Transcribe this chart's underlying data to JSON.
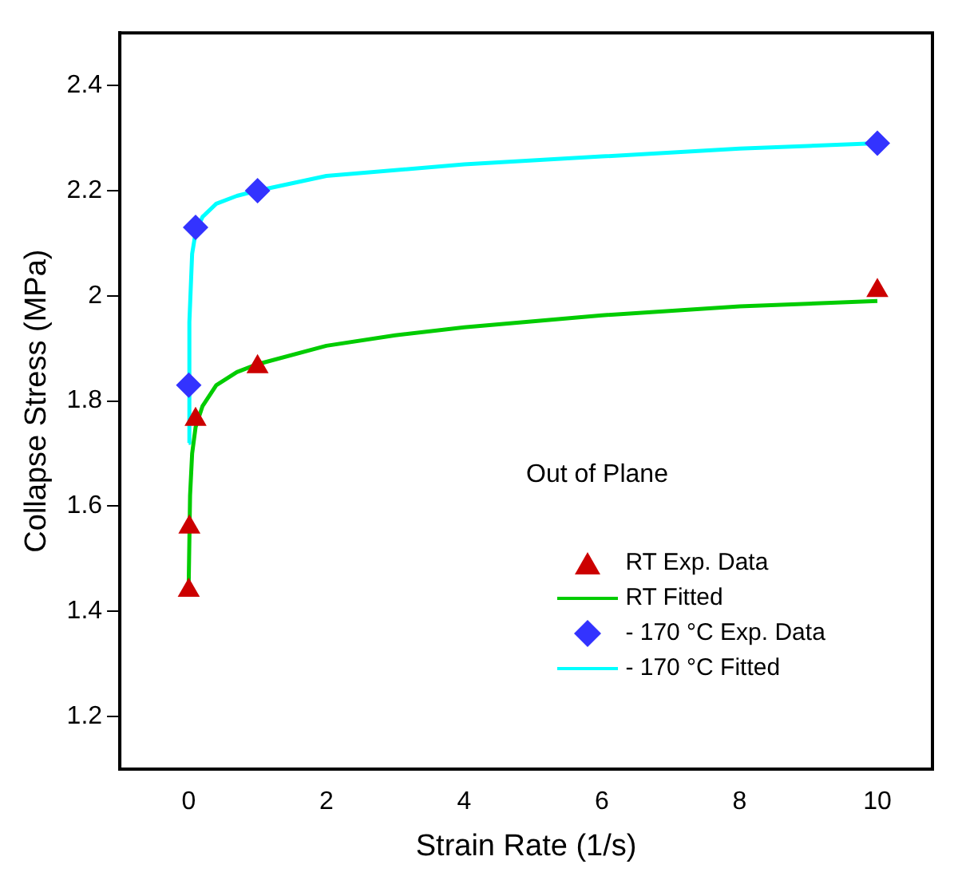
{
  "chart_data": {
    "type": "scatter",
    "xlabel": "Strain Rate (1/s)",
    "ylabel": "Collapse Stress (MPa)",
    "xlim": [
      -1,
      10.8
    ],
    "ylim": [
      1.1,
      2.5
    ],
    "xticks": [
      0,
      2,
      4,
      6,
      8,
      10
    ],
    "yticks": [
      1.2,
      1.4,
      1.6,
      1.8,
      2,
      2.2,
      2.4
    ],
    "grid": false,
    "legend": "right",
    "annotations": [
      "Out of Plane"
    ],
    "series": [
      {
        "name": "RT Exp. Data",
        "marker": "triangle",
        "color": "#cc0000",
        "x": [
          0.001,
          0.01,
          0.1,
          1,
          10
        ],
        "values": [
          1.44,
          1.56,
          1.765,
          1.865,
          2.01
        ]
      },
      {
        "name": "RT Fitted",
        "type": "line",
        "marker": "none",
        "color": "#00cc00",
        "x": [
          0,
          0.02,
          0.05,
          0.1,
          0.2,
          0.4,
          0.7,
          1,
          2,
          3,
          4,
          6,
          8,
          10
        ],
        "values": [
          1.45,
          1.62,
          1.7,
          1.75,
          1.79,
          1.83,
          1.855,
          1.87,
          1.905,
          1.925,
          1.94,
          1.963,
          1.98,
          1.99
        ]
      },
      {
        "name": "- 170 °C Exp. Data",
        "marker": "diamond",
        "color": "#3333ff",
        "x": [
          0.001,
          0.1,
          1,
          10
        ],
        "values": [
          1.83,
          2.13,
          2.2,
          2.29
        ]
      },
      {
        "name": "- 170 °C Fitted",
        "type": "line",
        "marker": "none",
        "color": "#00ffff",
        "x": [
          0,
          0.01,
          0.05,
          0.1,
          0.2,
          0.4,
          0.7,
          1,
          2,
          4,
          6,
          8,
          10
        ],
        "values": [
          1.72,
          1.95,
          2.08,
          2.12,
          2.15,
          2.175,
          2.19,
          2.2,
          2.228,
          2.25,
          2.265,
          2.28,
          2.29
        ]
      }
    ]
  }
}
